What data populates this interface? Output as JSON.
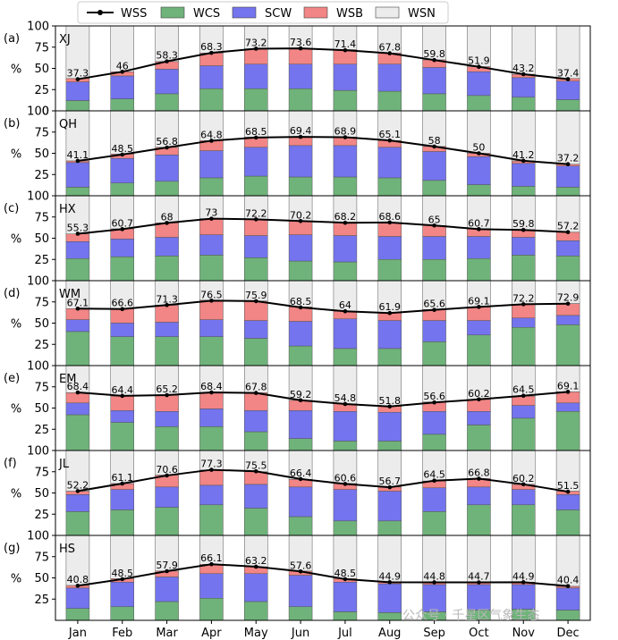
{
  "legend": [
    {
      "key": "WSS",
      "label": "WSS",
      "color": "#000000",
      "kind": "line"
    },
    {
      "key": "WCS",
      "label": "WCS",
      "color": "#6fb37a",
      "kind": "box"
    },
    {
      "key": "SCW",
      "label": "SCW",
      "color": "#7474ee",
      "kind": "box"
    },
    {
      "key": "WSB",
      "label": "WSB",
      "color": "#f28585",
      "kind": "box"
    },
    {
      "key": "WSN",
      "label": "WSN",
      "color": "#ececec",
      "kind": "box"
    }
  ],
  "watermark": "公众号 · 千星区气象生态",
  "chart_data": {
    "type": "bar",
    "stacked": true,
    "categories": [
      "Jan",
      "Feb",
      "Mar",
      "Apr",
      "May",
      "Jun",
      "Jul",
      "Aug",
      "Sep",
      "Oct",
      "Nov",
      "Dec"
    ],
    "ylabel": "%",
    "ylim": [
      0,
      100
    ],
    "yticks": [
      0,
      25,
      50,
      75,
      100
    ],
    "grid": false,
    "legend_position": "top-center",
    "panels": [
      {
        "tag": "(a)",
        "name": "XJ",
        "WSS": [
          37.3,
          46.0,
          58.3,
          68.3,
          73.2,
          73.6,
          71.4,
          67.8,
          59.8,
          51.9,
          43.2,
          37.4
        ],
        "WCS": [
          12,
          14,
          20,
          26,
          26,
          26,
          24,
          23,
          20,
          18,
          16,
          13
        ],
        "SCW": [
          22,
          27,
          29,
          27,
          29,
          29,
          31,
          32,
          31,
          28,
          23,
          22
        ],
        "WSB": [
          4,
          5,
          9,
          15,
          18,
          18,
          17,
          13,
          9,
          6,
          4,
          3
        ]
      },
      {
        "tag": "(b)",
        "name": "QH",
        "WSS": [
          41.1,
          48.5,
          56.8,
          64.8,
          68.5,
          69.4,
          68.9,
          65.1,
          58.0,
          50.0,
          41.2,
          37.2
        ],
        "WCS": [
          10,
          15,
          17,
          21,
          23,
          22,
          22,
          21,
          18,
          13,
          11,
          10
        ],
        "SCW": [
          29,
          29,
          31,
          32,
          34,
          37,
          37,
          36,
          34,
          33,
          27,
          25
        ],
        "WSB": [
          2,
          5,
          9,
          12,
          12,
          10,
          10,
          8,
          6,
          4,
          3,
          2
        ]
      },
      {
        "tag": "(c)",
        "name": "HX",
        "WSS": [
          55.3,
          60.7,
          68.0,
          73.0,
          72.2,
          70.2,
          68.2,
          68.6,
          65.0,
          60.7,
          59.8,
          57.2
        ],
        "WCS": [
          26,
          28,
          29,
          30,
          27,
          23,
          22,
          25,
          25,
          26,
          30,
          29
        ],
        "SCW": [
          20,
          21,
          22,
          24,
          26,
          31,
          31,
          27,
          27,
          26,
          21,
          18
        ],
        "WSB": [
          9,
          12,
          17,
          19,
          19,
          16,
          15,
          16,
          13,
          9,
          9,
          10
        ]
      },
      {
        "tag": "(d)",
        "name": "WM",
        "WSS": [
          67.1,
          66.6,
          71.3,
          76.5,
          75.9,
          68.5,
          64.0,
          61.9,
          65.6,
          69.1,
          72.2,
          72.9
        ],
        "WCS": [
          40,
          34,
          34,
          34,
          32,
          23,
          20,
          20,
          28,
          36,
          45,
          48
        ],
        "SCW": [
          14,
          16,
          17,
          20,
          21,
          29,
          35,
          33,
          25,
          17,
          11,
          11
        ],
        "WSB": [
          13,
          17,
          20,
          23,
          23,
          17,
          9,
          9,
          13,
          16,
          16,
          14
        ]
      },
      {
        "tag": "(e)",
        "name": "EM",
        "WSS": [
          68.4,
          64.4,
          65.2,
          68.4,
          67.8,
          59.2,
          54.8,
          51.8,
          56.6,
          60.2,
          64.5,
          69.1
        ],
        "WCS": [
          42,
          33,
          28,
          28,
          22,
          14,
          11,
          11,
          19,
          30,
          38,
          46
        ],
        "SCW": [
          14,
          14,
          18,
          21,
          25,
          33,
          35,
          34,
          27,
          16,
          15,
          10
        ],
        "WSB": [
          12,
          17,
          19,
          19,
          21,
          12,
          9,
          7,
          11,
          14,
          11,
          13
        ]
      },
      {
        "tag": "(f)",
        "name": "JL",
        "WSS": [
          52.2,
          61.1,
          70.6,
          77.3,
          75.5,
          66.4,
          60.6,
          56.7,
          64.5,
          66.8,
          60.2,
          51.5
        ],
        "WCS": [
          28,
          30,
          33,
          36,
          32,
          22,
          17,
          17,
          28,
          36,
          36,
          30
        ],
        "SCW": [
          20,
          24,
          24,
          23,
          28,
          35,
          37,
          35,
          28,
          21,
          18,
          18
        ],
        "WSB": [
          4,
          7,
          14,
          18,
          15,
          9,
          7,
          5,
          8,
          10,
          6,
          4
        ]
      },
      {
        "tag": "(g)",
        "name": "HS",
        "WSS": [
          40.8,
          48.5,
          57.9,
          66.1,
          63.2,
          57.6,
          48.5,
          44.9,
          44.8,
          44.7,
          44.9,
          40.4
        ],
        "WCS": [
          14,
          16,
          22,
          26,
          22,
          16,
          10,
          9,
          10,
          12,
          13,
          12
        ],
        "SCW": [
          24,
          29,
          29,
          29,
          33,
          37,
          35,
          34,
          32,
          30,
          29,
          26
        ],
        "WSB": [
          3,
          4,
          7,
          11,
          8,
          5,
          4,
          2,
          3,
          3,
          3,
          2
        ]
      }
    ]
  }
}
